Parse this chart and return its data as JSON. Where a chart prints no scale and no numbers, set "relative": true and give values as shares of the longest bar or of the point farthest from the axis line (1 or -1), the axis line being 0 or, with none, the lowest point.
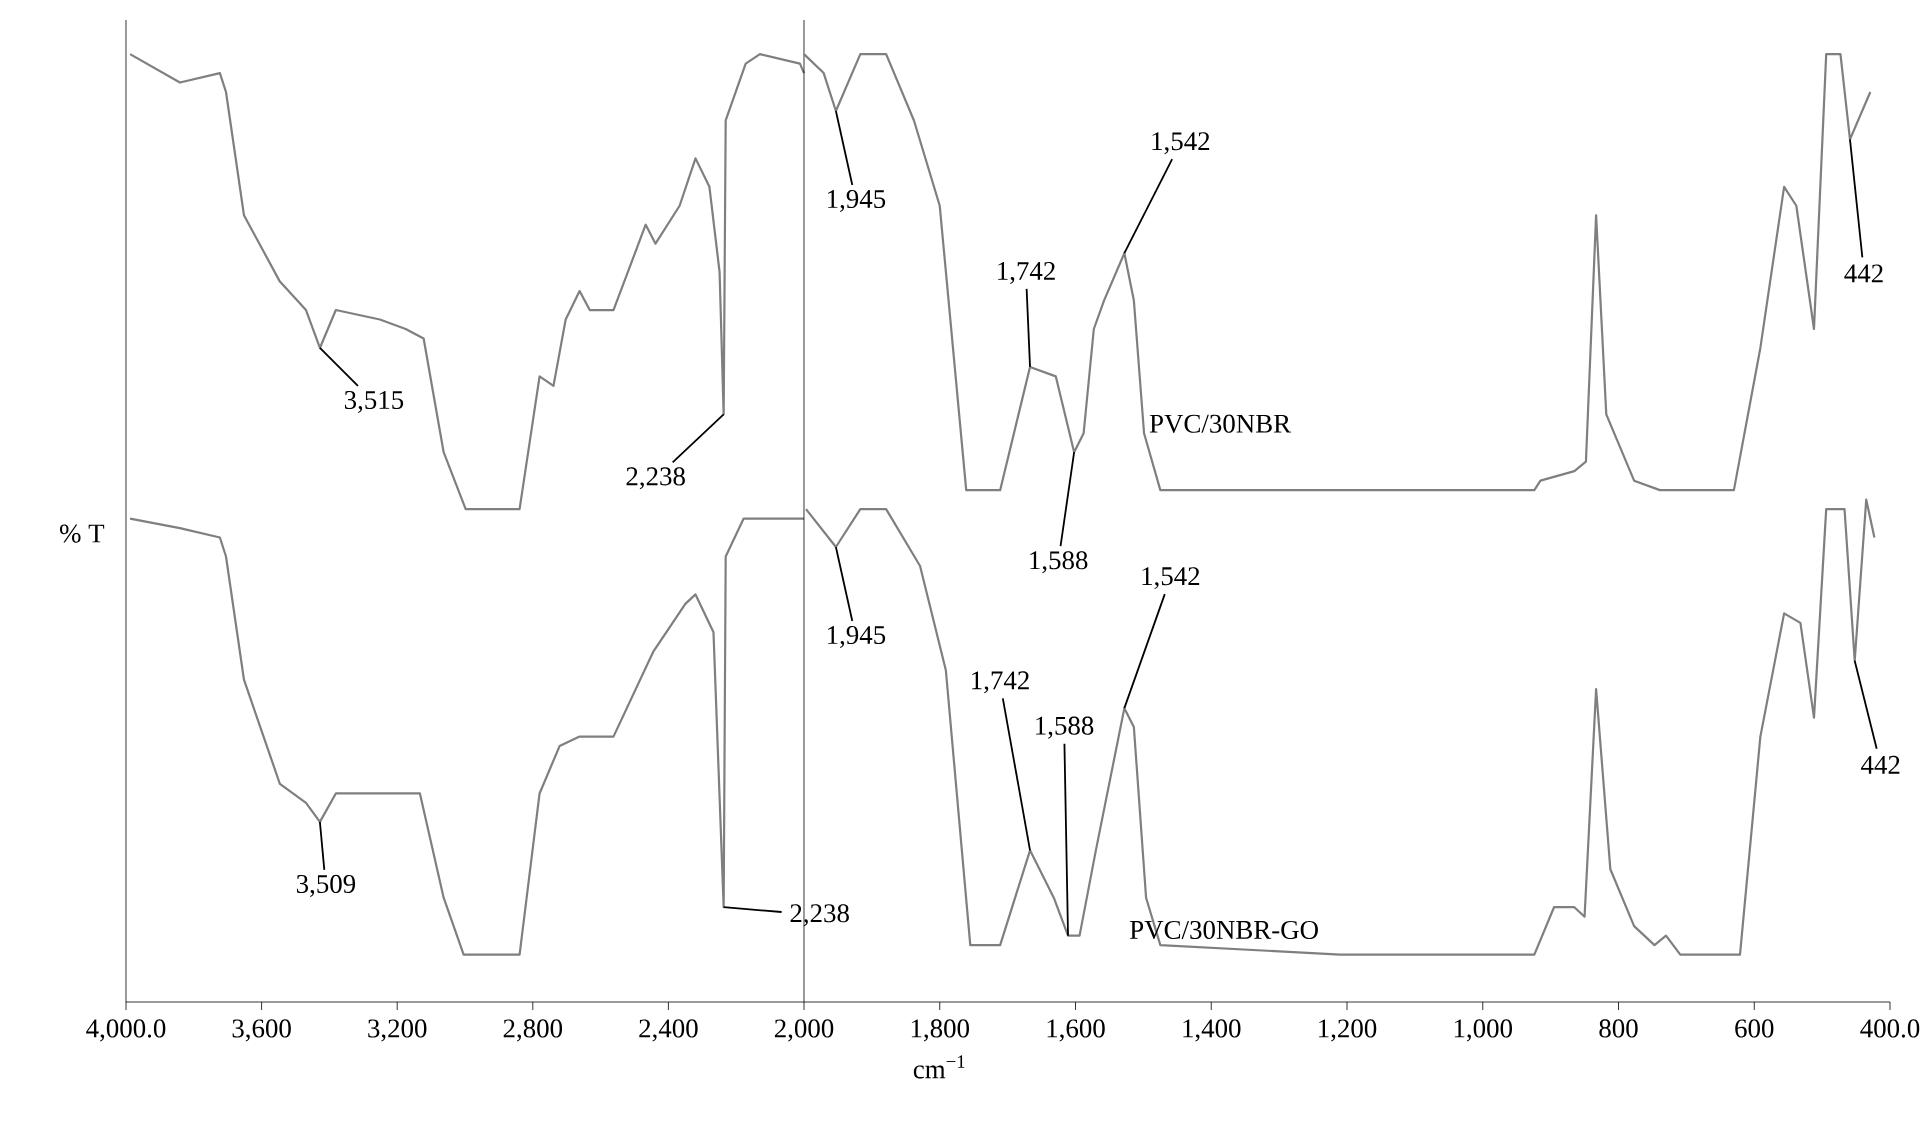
{
  "chart_data": [
    {
      "type": "line",
      "relative": true,
      "ylabel": "% T",
      "marker": "none",
      "line_style": "solid",
      "xlim": [
        4000,
        2000
      ],
      "xticks": [
        {
          "value": 4000,
          "label": "4,000.0"
        },
        {
          "value": 3600,
          "label": "3,600"
        },
        {
          "value": 3200,
          "label": "3,200"
        },
        {
          "value": 2800,
          "label": "2,800"
        },
        {
          "value": 2400,
          "label": "2,400"
        }
      ],
      "series": [
        {
          "color": "#7f7f7f",
          "x": [
            3988,
            3841,
            3723,
            3705,
            3652,
            3546,
            3469,
            3428,
            3381,
            3251,
            3175,
            3122,
            3063,
            2998,
            2839,
            2780,
            2739,
            2703,
            2662,
            2632,
            2562,
            2467,
            2438,
            2367,
            2320,
            2279,
            2249,
            2237,
            2231,
            2172,
            2130,
            2012,
            2000
          ],
          "values": [
            1.0,
            0.97,
            0.98,
            0.96,
            0.83,
            0.76,
            0.73,
            0.69,
            0.73,
            0.72,
            0.71,
            0.7,
            0.58,
            0.52,
            0.52,
            0.66,
            0.65,
            0.72,
            0.75,
            0.73,
            0.73,
            0.82,
            0.8,
            0.84,
            0.89,
            0.86,
            0.77,
            0.62,
            0.93,
            0.99,
            1.0,
            0.99,
            0.98
          ]
        },
        {
          "color": "#7f7f7f",
          "x": [
            3988,
            3841,
            3723,
            3705,
            3652,
            3546,
            3469,
            3428,
            3381,
            3133,
            3063,
            3004,
            2839,
            2780,
            2721,
            2662,
            2562,
            2444,
            2350,
            2320,
            2267,
            2237,
            2231,
            2178,
            2130,
            2000
          ],
          "values": [
            0.51,
            0.5,
            0.49,
            0.47,
            0.34,
            0.23,
            0.21,
            0.19,
            0.22,
            0.22,
            0.11,
            0.05,
            0.05,
            0.22,
            0.27,
            0.28,
            0.28,
            0.37,
            0.42,
            0.43,
            0.39,
            0.1,
            0.47,
            0.51,
            0.51,
            0.51
          ]
        }
      ],
      "annotations": [
        "3,515",
        "2,238",
        "3,509",
        "2,238"
      ]
    },
    {
      "type": "line",
      "relative": true,
      "xlabel": "cm$^{−1}$",
      "marker": "none",
      "line_style": "solid",
      "xlim": [
        2000,
        400
      ],
      "xticks": [
        {
          "value": 2000,
          "label": "2,000"
        },
        {
          "value": 1800,
          "label": "1,800"
        },
        {
          "value": 1600,
          "label": "1,600"
        },
        {
          "value": 1400,
          "label": "1,400"
        },
        {
          "value": 1200,
          "label": "1,200"
        },
        {
          "value": 1000,
          "label": "1,000"
        },
        {
          "value": 800,
          "label": "800"
        },
        {
          "value": 600,
          "label": "600"
        },
        {
          "value": 400,
          "label": "400.0"
        }
      ],
      "series": [
        {
          "name": "PVC/30NBR",
          "color": "#7f7f7f",
          "x": [
            2000,
            1971,
            1953,
            1917,
            1879,
            1838,
            1800,
            1761,
            1711,
            1667,
            1629,
            1602,
            1588,
            1573,
            1558,
            1528,
            1514,
            1499,
            1475,
            1416,
            1210,
            924,
            915,
            865,
            848,
            833,
            818,
            777,
            739,
            630,
            591,
            556,
            538,
            512,
            494,
            473,
            459,
            429
          ],
          "values": [
            1.0,
            0.98,
            0.94,
            1.0,
            1.0,
            0.93,
            0.84,
            0.54,
            0.54,
            0.67,
            0.66,
            0.58,
            0.6,
            0.71,
            0.74,
            0.79,
            0.74,
            0.6,
            0.54,
            0.54,
            0.54,
            0.54,
            0.55,
            0.56,
            0.57,
            0.83,
            0.62,
            0.55,
            0.54,
            0.54,
            0.69,
            0.86,
            0.84,
            0.71,
            1.0,
            1.0,
            0.91,
            0.96
          ]
        },
        {
          "name": "PVC/30NBR-GO",
          "color": "#7f7f7f",
          "x": [
            1997,
            1953,
            1917,
            1879,
            1829,
            1791,
            1755,
            1711,
            1667,
            1632,
            1611,
            1594,
            1570,
            1528,
            1514,
            1496,
            1475,
            1210,
            924,
            895,
            865,
            850,
            833,
            812,
            777,
            747,
            730,
            709,
            621,
            591,
            556,
            532,
            512,
            494,
            467,
            452,
            435,
            423
          ],
          "values": [
            0.52,
            0.48,
            0.52,
            0.52,
            0.46,
            0.35,
            0.06,
            0.06,
            0.16,
            0.11,
            0.07,
            0.07,
            0.16,
            0.31,
            0.29,
            0.11,
            0.06,
            0.05,
            0.05,
            0.1,
            0.1,
            0.09,
            0.33,
            0.14,
            0.08,
            0.06,
            0.07,
            0.05,
            0.05,
            0.28,
            0.41,
            0.4,
            0.3,
            0.52,
            0.52,
            0.36,
            0.53,
            0.49
          ]
        }
      ],
      "annotations": [
        "1,945",
        "1,742",
        "1,588",
        "1,542",
        "442",
        "1,945",
        "1,742",
        "1,588",
        "1,542",
        "442"
      ]
    }
  ]
}
